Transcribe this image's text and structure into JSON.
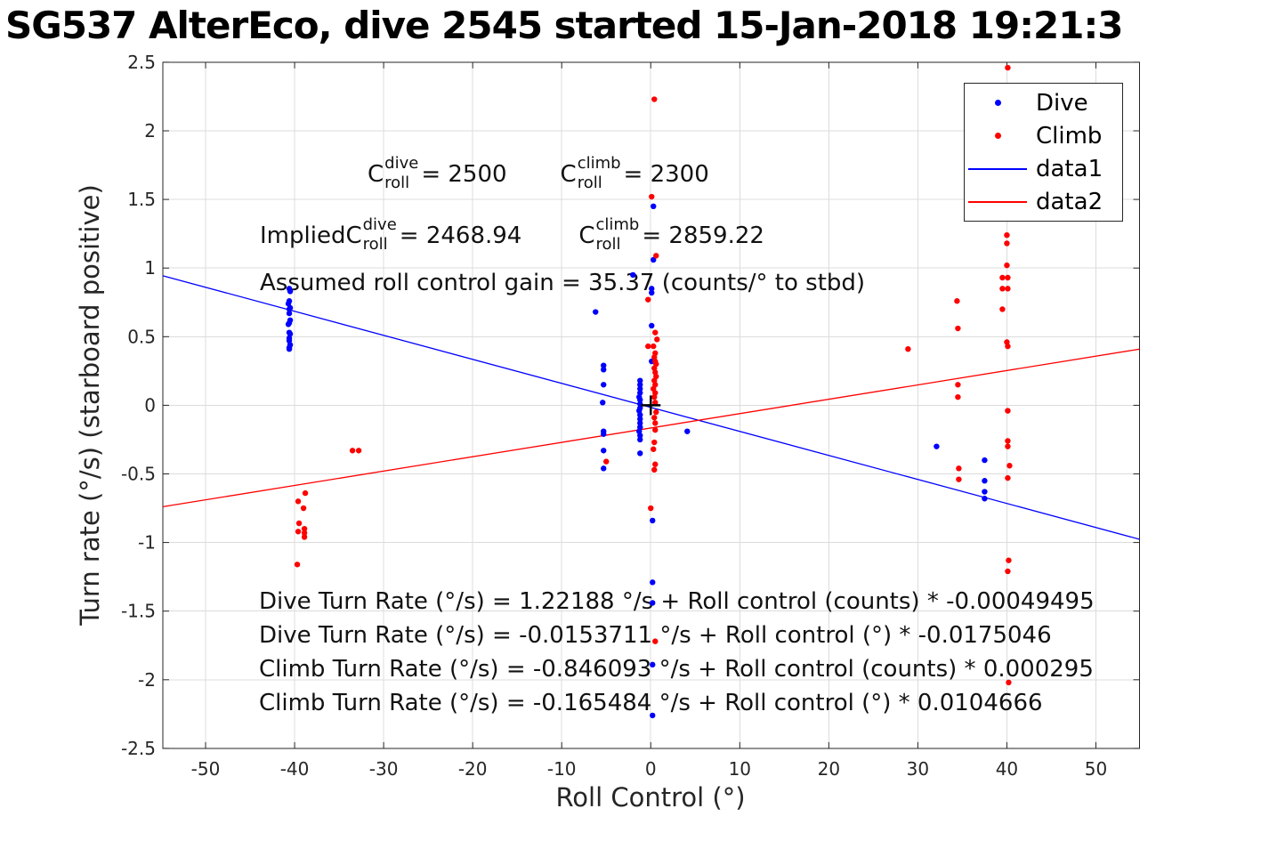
{
  "title": "SG537 AlterEco, dive 2545 started 15-Jan-2018 19:21:3",
  "colors": {
    "dive": "#0000ff",
    "climb": "#ff0000",
    "axis": "#262626",
    "grid": "#dcdcdc",
    "mean_marker": "#000000"
  },
  "legend": {
    "items": [
      {
        "label": "Dive",
        "marker": "dot",
        "color": "#0000ff"
      },
      {
        "label": "Climb",
        "marker": "dot",
        "color": "#ff0000"
      },
      {
        "label": "data1",
        "marker": "line",
        "color": "#0000ff"
      },
      {
        "label": "data2",
        "marker": "line",
        "color": "#ff0000"
      }
    ]
  },
  "chart_data": {
    "type": "scatter",
    "title": "SG537 AlterEco, dive 2545 started 15-Jan-2018 19:21:3",
    "xlabel": "Roll Control (°)",
    "ylabel": "Turn rate (°/s) (starboard positive)",
    "xlim": [
      -54.8,
      54.9
    ],
    "ylim": [
      -2.5,
      2.5
    ],
    "xticks": [
      -50,
      -40,
      -30,
      -20,
      -10,
      0,
      10,
      20,
      30,
      40,
      50
    ],
    "xtick_labels": [
      "-50",
      "-40",
      "-30",
      "-20",
      "-10",
      "0",
      "10",
      "20",
      "30",
      "40",
      "50"
    ],
    "yticks": [
      -2.5,
      -2,
      -1.5,
      -1,
      -0.5,
      0,
      0.5,
      1,
      1.5,
      2,
      2.5
    ],
    "ytick_labels": [
      "-2.5",
      "-2",
      "-1.5",
      "-1",
      "-0.5",
      "0",
      "0.5",
      "1",
      "1.5",
      "2",
      "2.5"
    ],
    "grid": true,
    "legend_position": "northeast",
    "series": [
      {
        "name": "Dive",
        "color": "#0000ff",
        "marker": "dot",
        "points": [
          [
            -40.6,
            0.85
          ],
          [
            -40.5,
            0.83
          ],
          [
            -40.6,
            0.76
          ],
          [
            -40.7,
            0.74
          ],
          [
            -40.5,
            0.71
          ],
          [
            -40.6,
            0.7
          ],
          [
            -40.6,
            0.67
          ],
          [
            -40.5,
            0.62
          ],
          [
            -40.6,
            0.6
          ],
          [
            -40.7,
            0.59
          ],
          [
            -40.6,
            0.53
          ],
          [
            -40.5,
            0.52
          ],
          [
            -40.6,
            0.49
          ],
          [
            -40.6,
            0.47
          ],
          [
            -40.5,
            0.44
          ],
          [
            -40.6,
            0.42
          ],
          [
            -40.6,
            0.41
          ],
          [
            -6.2,
            0.68
          ],
          [
            -5.3,
            0.29
          ],
          [
            -5.3,
            0.26
          ],
          [
            -5.3,
            0.15
          ],
          [
            -5.4,
            0.02
          ],
          [
            -5.3,
            -0.19
          ],
          [
            -5.3,
            -0.21
          ],
          [
            -5.3,
            -0.33
          ],
          [
            -5.3,
            -0.46
          ],
          [
            -2.0,
            0.95
          ],
          [
            0.3,
            1.45
          ],
          [
            0.3,
            1.06
          ],
          [
            0.1,
            0.85
          ],
          [
            0.1,
            0.82
          ],
          [
            0.1,
            0.58
          ],
          [
            0.1,
            0.32
          ],
          [
            -1.2,
            0.18
          ],
          [
            -1.2,
            0.15
          ],
          [
            -1.2,
            0.12
          ],
          [
            -1.2,
            0.09
          ],
          [
            -1.3,
            0.06
          ],
          [
            -1.2,
            0.04
          ],
          [
            -1.2,
            0.01
          ],
          [
            -1.2,
            -0.02
          ],
          [
            -1.3,
            -0.04
          ],
          [
            -1.2,
            -0.07
          ],
          [
            -1.2,
            -0.1
          ],
          [
            -1.2,
            -0.13
          ],
          [
            -1.2,
            -0.16
          ],
          [
            -1.3,
            -0.19
          ],
          [
            -1.2,
            -0.22
          ],
          [
            -1.2,
            -0.25
          ],
          [
            -1.2,
            -0.35
          ],
          [
            0.2,
            -0.84
          ],
          [
            0.2,
            -1.29
          ],
          [
            0.2,
            -1.44
          ],
          [
            0.2,
            -1.89
          ],
          [
            0.2,
            -2.26
          ],
          [
            4.1,
            -0.19
          ],
          [
            32.1,
            -0.3
          ],
          [
            37.5,
            -0.4
          ],
          [
            37.5,
            -0.55
          ],
          [
            37.5,
            -0.63
          ],
          [
            37.5,
            -0.68
          ]
        ]
      },
      {
        "name": "Climb",
        "color": "#ff0000",
        "marker": "dot",
        "points": [
          [
            -39.7,
            -1.16
          ],
          [
            -39.6,
            -0.92
          ],
          [
            -39.6,
            -0.7
          ],
          [
            -39.5,
            -0.86
          ],
          [
            -39.0,
            -0.75
          ],
          [
            -38.9,
            -0.9
          ],
          [
            -38.9,
            -0.93
          ],
          [
            -38.9,
            -0.96
          ],
          [
            -38.8,
            -0.64
          ],
          [
            -33.5,
            -0.33
          ],
          [
            -32.8,
            -0.33
          ],
          [
            -5.0,
            -0.41
          ],
          [
            0.4,
            2.23
          ],
          [
            0.1,
            1.52
          ],
          [
            0.6,
            1.09
          ],
          [
            -0.3,
            0.77
          ],
          [
            0.5,
            0.53
          ],
          [
            0.7,
            0.48
          ],
          [
            0.3,
            0.43
          ],
          [
            -0.3,
            0.43
          ],
          [
            0.5,
            0.38
          ],
          [
            0.4,
            0.35
          ],
          [
            0.5,
            0.32
          ],
          [
            0.6,
            0.3
          ],
          [
            0.4,
            0.27
          ],
          [
            0.5,
            0.24
          ],
          [
            0.6,
            0.21
          ],
          [
            0.4,
            0.18
          ],
          [
            0.5,
            0.15
          ],
          [
            0.3,
            0.12
          ],
          [
            0.5,
            0.09
          ],
          [
            0.4,
            0.06
          ],
          [
            0.5,
            0.02
          ],
          [
            0.6,
            -0.05
          ],
          [
            0.4,
            -0.09
          ],
          [
            0.5,
            -0.13
          ],
          [
            0.5,
            -0.18
          ],
          [
            0.4,
            -0.27
          ],
          [
            0.3,
            -0.32
          ],
          [
            0.5,
            -0.43
          ],
          [
            0.4,
            -0.47
          ],
          [
            0.0,
            -0.75
          ],
          [
            0.5,
            -1.72
          ],
          [
            28.9,
            0.41
          ],
          [
            34.4,
            0.76
          ],
          [
            34.5,
            0.56
          ],
          [
            34.5,
            0.15
          ],
          [
            34.5,
            0.06
          ],
          [
            34.6,
            -0.46
          ],
          [
            34.6,
            -0.54
          ],
          [
            40.1,
            2.46
          ],
          [
            40.0,
            1.24
          ],
          [
            40.0,
            1.18
          ],
          [
            40.0,
            1.02
          ],
          [
            39.5,
            0.93
          ],
          [
            40.1,
            0.93
          ],
          [
            39.5,
            0.85
          ],
          [
            40.1,
            0.85
          ],
          [
            39.5,
            0.7
          ],
          [
            40.0,
            0.46
          ],
          [
            40.1,
            0.43
          ],
          [
            40.1,
            -0.04
          ],
          [
            40.1,
            -0.26
          ],
          [
            40.1,
            -0.3
          ],
          [
            40.3,
            -0.44
          ],
          [
            40.1,
            -0.53
          ],
          [
            40.2,
            -1.13
          ],
          [
            40.1,
            -1.21
          ],
          [
            40.2,
            -2.02
          ]
        ]
      }
    ],
    "fit_lines": [
      {
        "name": "data1",
        "color": "#0000ff",
        "intercept": -0.0153711,
        "slope": -0.0175046
      },
      {
        "name": "data2",
        "color": "#ff0000",
        "intercept": -0.165484,
        "slope": 0.0104666
      }
    ],
    "mean_marker": {
      "x": 0,
      "y": 0,
      "color": "#000000",
      "shape": "plus"
    },
    "annotations": {
      "c_symbol": "C",
      "sup_dive": "dive",
      "sup_climb": "climb",
      "sub_roll": "roll",
      "assumed_dive_value": " = 2500",
      "assumed_climb_value": " = 2300",
      "implied_prefix": "Implied ",
      "implied_dive_value": " = 2468.94",
      "implied_climb_value": " = 2859.22",
      "gain_line": "Assumed roll control gain = 35.37 (counts/° to stbd)",
      "fit_equations": [
        "Dive Turn Rate (°/s) = 1.22188 °/s + Roll control (counts) * -0.00049495",
        "Dive Turn Rate (°/s) = -0.0153711 °/s + Roll control (°) * -0.0175046",
        "Climb Turn Rate (°/s) = -0.846093 °/s + Roll control (counts) * 0.000295",
        "Climb Turn Rate (°/s) = -0.165484 °/s + Roll control (°) * 0.0104666"
      ]
    }
  }
}
